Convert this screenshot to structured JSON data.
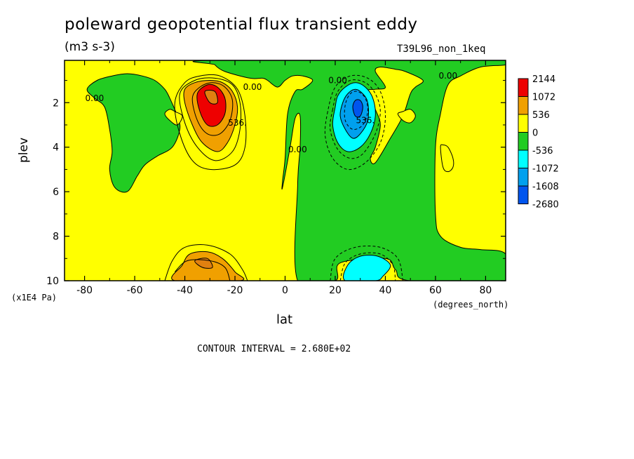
{
  "title": "poleward geopotential flux transient eddy",
  "units": "(m3 s-3)",
  "subtitle": "T39L96_non_1keq",
  "xlabel": "lat",
  "xunit": "(degrees_north)",
  "ylabel": "plev",
  "yunit": "(x1E4 Pa)",
  "contour_interval": "CONTOUR INTERVAL = 2.680E+02",
  "colors": {
    "red": "#ee0000",
    "orange": "#f0a000",
    "yellow": "#ffff00",
    "green": "#22cc22",
    "cyan": "#00ffff",
    "lightblue": "#00a0ee",
    "blue": "#0055ee",
    "darkorange": "#e08010"
  },
  "chart_data": {
    "type": "heatmap",
    "title": "poleward geopotential flux transient eddy",
    "subtitle": "T39L96_non_1keq",
    "xlabel": "lat",
    "ylabel": "plev",
    "xlim": [
      -88,
      88
    ],
    "ylim": [
      10,
      0.1
    ],
    "x_ticks": [
      -80,
      -60,
      -40,
      -20,
      0,
      20,
      40,
      60,
      80
    ],
    "y_ticks": [
      2,
      4,
      6,
      8,
      10
    ],
    "legend": {
      "placement": "right",
      "levels": [
        {
          "label": "2144",
          "color": "#ee0000"
        },
        {
          "label": "1072",
          "color": "#f0a000"
        },
        {
          "label": "536",
          "color": "#ffff00"
        },
        {
          "label": "0",
          "color": "#22cc22"
        },
        {
          "label": "-536",
          "color": "#00ffff"
        },
        {
          "label": "-1072",
          "color": "#00a0ee"
        },
        {
          "label": "-1608",
          "color": "#0055ee"
        },
        {
          "label": "-2680",
          "color": ""
        }
      ]
    },
    "contour_labels": [
      {
        "text": "0.00",
        "x": -76,
        "y": 1.8
      },
      {
        "text": "0.00",
        "x": -13,
        "y": 1.3
      },
      {
        "text": "536.",
        "x": -19,
        "y": 2.9
      },
      {
        "text": "0.00",
        "x": 5,
        "y": 4.1
      },
      {
        "text": "0.00",
        "x": 21,
        "y": 1.0
      },
      {
        "text": "536.",
        "x": 32,
        "y": 2.8
      },
      {
        "text": "0.00",
        "x": 65,
        "y": 0.8
      }
    ],
    "regions": [
      {
        "fill": "green",
        "points": [
          [
            -28,
            0.1
          ],
          [
            -28,
            0.3
          ],
          [
            -24,
            0.6
          ],
          [
            -14,
            0.9
          ],
          [
            -9,
            0.9
          ],
          [
            -7,
            1.0
          ],
          [
            -3,
            1.3
          ],
          [
            0,
            1.0
          ],
          [
            3,
            0.8
          ],
          [
            7,
            0.8
          ],
          [
            11,
            1.0
          ],
          [
            7,
            1.4
          ],
          [
            4,
            1.5
          ],
          [
            1,
            2.5
          ],
          [
            0,
            4.5
          ],
          [
            -1,
            5.5
          ],
          [
            -1,
            5.8
          ],
          [
            2,
            4.0
          ],
          [
            4,
            2.7
          ],
          [
            6,
            2.6
          ],
          [
            6,
            4.0
          ],
          [
            5,
            5.7
          ],
          [
            5,
            10
          ],
          [
            20,
            10
          ],
          [
            22,
            9.2
          ],
          [
            40,
            9.0
          ],
          [
            44,
            9.5
          ],
          [
            50,
            10
          ],
          [
            88,
            10
          ],
          [
            88,
            8.8
          ],
          [
            78,
            8.6
          ],
          [
            70,
            8.5
          ],
          [
            62,
            8.0
          ],
          [
            60,
            7.0
          ],
          [
            60,
            4.0
          ],
          [
            62,
            2.5
          ],
          [
            65,
            1.2
          ],
          [
            70,
            0.8
          ],
          [
            78,
            0.4
          ],
          [
            88,
            0.3
          ],
          [
            88,
            0.1
          ]
        ]
      },
      {
        "fill": "yellow",
        "points": [
          [
            33,
            1.5
          ],
          [
            36,
            2.3
          ],
          [
            38,
            3.0
          ],
          [
            36,
            4.0
          ],
          [
            34,
            4.5
          ],
          [
            36,
            4.7
          ],
          [
            42,
            3.6
          ],
          [
            47,
            2.6
          ],
          [
            50,
            1.6
          ],
          [
            52,
            1.3
          ],
          [
            55,
            1.0
          ],
          [
            48,
            0.6
          ],
          [
            44,
            0.5
          ],
          [
            38,
            0.4
          ],
          [
            36,
            0.6
          ],
          [
            40,
            1.3
          ],
          [
            36,
            1.4
          ]
        ]
      },
      {
        "fill": "yellow",
        "points": [
          [
            62,
            4.0
          ],
          [
            63,
            4.9
          ],
          [
            65,
            5.1
          ],
          [
            67,
            4.9
          ],
          [
            67,
            4.5
          ],
          [
            65,
            4.0
          ],
          [
            63,
            3.9
          ]
        ]
      },
      {
        "fill": "yellow",
        "points": [
          [
            45,
            2.5
          ],
          [
            47,
            2.8
          ],
          [
            50,
            2.9
          ],
          [
            52,
            2.6
          ],
          [
            50,
            2.3
          ],
          [
            47,
            2.4
          ]
        ]
      },
      {
        "fill": "green",
        "points": [
          [
            -75,
            1.0
          ],
          [
            -79,
            1.4
          ],
          [
            -76,
            1.8
          ],
          [
            -72,
            2.2
          ],
          [
            -70,
            3.2
          ],
          [
            -69,
            4.2
          ],
          [
            -70,
            5.0
          ],
          [
            -68,
            5.8
          ],
          [
            -63,
            6.0
          ],
          [
            -59,
            5.3
          ],
          [
            -56,
            4.8
          ],
          [
            -51,
            4.4
          ],
          [
            -45,
            4.0
          ],
          [
            -42,
            3.2
          ],
          [
            -43,
            2.6
          ],
          [
            -46,
            1.8
          ],
          [
            -48,
            1.4
          ],
          [
            -52,
            1.0
          ],
          [
            -57,
            0.8
          ],
          [
            -63,
            0.7
          ],
          [
            -69,
            0.8
          ]
        ]
      },
      {
        "fill": "yellow",
        "points": [
          [
            -48,
            2.5
          ],
          [
            -46,
            2.8
          ],
          [
            -43,
            3.0
          ],
          [
            -41,
            2.6
          ],
          [
            -44,
            2.4
          ],
          [
            -46,
            2.3
          ]
        ]
      },
      {
        "fill": "cyan",
        "points": [
          [
            20,
            2.2
          ],
          [
            19,
            3.0
          ],
          [
            21,
            3.8
          ],
          [
            25,
            4.2
          ],
          [
            30,
            4.0
          ],
          [
            34,
            3.4
          ],
          [
            36,
            2.6
          ],
          [
            35,
            1.8
          ],
          [
            32,
            1.3
          ],
          [
            28,
            1.1
          ],
          [
            24,
            1.3
          ],
          [
            21,
            1.7
          ]
        ]
      },
      {
        "fill": "lightblue",
        "points": [
          [
            23,
            2.0
          ],
          [
            22,
            2.6
          ],
          [
            24,
            3.2
          ],
          [
            27,
            3.6
          ],
          [
            30,
            3.4
          ],
          [
            33,
            2.8
          ],
          [
            33,
            2.0
          ],
          [
            31,
            1.6
          ],
          [
            28,
            1.4
          ],
          [
            25,
            1.6
          ]
        ]
      },
      {
        "fill": "blue",
        "points": [
          [
            27,
            2.2
          ],
          [
            28,
            2.6
          ],
          [
            30,
            2.6
          ],
          [
            31,
            2.2
          ],
          [
            30,
            1.9
          ],
          [
            28,
            1.9
          ]
        ]
      },
      {
        "fill": "cyan",
        "points": [
          [
            24,
            10
          ],
          [
            25,
            9.3
          ],
          [
            30,
            8.9
          ],
          [
            37,
            8.9
          ],
          [
            42,
            9.3
          ],
          [
            39,
            9.8
          ],
          [
            36,
            10
          ]
        ]
      },
      {
        "fill": "orange",
        "points": [
          [
            -40,
            1.4
          ],
          [
            -40,
            2.0
          ],
          [
            -37,
            3.0
          ],
          [
            -33,
            3.8
          ],
          [
            -27,
            4.2
          ],
          [
            -23,
            3.8
          ],
          [
            -20,
            3.0
          ],
          [
            -19,
            2.2
          ],
          [
            -21,
            1.5
          ],
          [
            -25,
            1.1
          ],
          [
            -30,
            1.0
          ],
          [
            -36,
            1.1
          ]
        ]
      },
      {
        "fill": "red",
        "points": [
          [
            -35,
            1.6
          ],
          [
            -34,
            2.4
          ],
          [
            -31,
            3.0
          ],
          [
            -27,
            3.0
          ],
          [
            -24,
            2.5
          ],
          [
            -24,
            1.8
          ],
          [
            -27,
            1.3
          ],
          [
            -31,
            1.2
          ]
        ]
      },
      {
        "fill": "darkorange",
        "points": [
          [
            -32,
            1.5
          ],
          [
            -30,
            2.0
          ],
          [
            -27,
            2.0
          ],
          [
            -28,
            1.5
          ]
        ]
      },
      {
        "fill": "orange",
        "points": [
          [
            -44,
            10
          ],
          [
            -41,
            9.3
          ],
          [
            -38,
            8.8
          ],
          [
            -31,
            8.7
          ],
          [
            -25,
            9.0
          ],
          [
            -20,
            9.6
          ],
          [
            -18,
            10
          ]
        ]
      },
      {
        "fill": "darkorange",
        "points": [
          [
            -36,
            9.1
          ],
          [
            -33,
            9.4
          ],
          [
            -29,
            9.4
          ],
          [
            -31,
            9.0
          ]
        ]
      }
    ],
    "contour_lines": [
      {
        "style": "solid",
        "points": [
          [
            -44,
            2.0
          ],
          [
            -42,
            3.4
          ],
          [
            -37,
            4.6
          ],
          [
            -30,
            5.0
          ],
          [
            -20,
            4.8
          ],
          [
            -16,
            4.0
          ],
          [
            -16,
            2.6
          ],
          [
            -19,
            1.4
          ],
          [
            -26,
            0.8
          ],
          [
            -34,
            0.8
          ],
          [
            -40,
            1.1
          ]
        ]
      },
      {
        "style": "solid",
        "points": [
          [
            -42,
            1.6
          ],
          [
            -40,
            2.9
          ],
          [
            -35,
            4.0
          ],
          [
            -28,
            4.6
          ],
          [
            -21,
            4.2
          ],
          [
            -18,
            3.2
          ],
          [
            -18,
            2.0
          ],
          [
            -21,
            1.2
          ],
          [
            -28,
            0.9
          ],
          [
            -36,
            1.0
          ]
        ]
      },
      {
        "style": "solid",
        "points": [
          [
            -37,
            1.8
          ],
          [
            -35,
            2.8
          ],
          [
            -31,
            3.4
          ],
          [
            -26,
            3.4
          ],
          [
            -22,
            2.8
          ],
          [
            -21,
            1.9
          ],
          [
            -24,
            1.3
          ],
          [
            -29,
            1.1
          ],
          [
            -34,
            1.3
          ]
        ]
      },
      {
        "style": "solid",
        "points": [
          [
            -48,
            10
          ],
          [
            -45,
            9.1
          ],
          [
            -40,
            8.5
          ],
          [
            -31,
            8.4
          ],
          [
            -22,
            8.8
          ],
          [
            -17,
            9.5
          ],
          [
            -15,
            10
          ]
        ]
      },
      {
        "style": "solid",
        "points": [
          [
            -44,
            9.6
          ],
          [
            -39,
            9.1
          ],
          [
            -30,
            9.1
          ],
          [
            -24,
            9.4
          ],
          [
            -22,
            10
          ]
        ]
      },
      {
        "style": "dashed",
        "points": [
          [
            17,
            2.4
          ],
          [
            16,
            3.5
          ],
          [
            19,
            4.5
          ],
          [
            25,
            5.0
          ],
          [
            32,
            4.7
          ],
          [
            38,
            3.8
          ],
          [
            40,
            2.6
          ],
          [
            38,
            1.5
          ],
          [
            33,
            0.9
          ],
          [
            26,
            0.8
          ],
          [
            20,
            1.3
          ]
        ]
      },
      {
        "style": "dashed",
        "points": [
          [
            19,
            2.3
          ],
          [
            18,
            3.2
          ],
          [
            21,
            4.1
          ],
          [
            26,
            4.5
          ],
          [
            31,
            4.3
          ],
          [
            36,
            3.4
          ],
          [
            38,
            2.4
          ],
          [
            36,
            1.6
          ],
          [
            32,
            1.1
          ],
          [
            26,
            1.0
          ],
          [
            21,
            1.5
          ]
        ]
      },
      {
        "style": "dashed",
        "points": [
          [
            24,
            2.1
          ],
          [
            24,
            2.8
          ],
          [
            27,
            3.2
          ],
          [
            31,
            3.0
          ],
          [
            33,
            2.4
          ],
          [
            32,
            1.8
          ],
          [
            29,
            1.5
          ],
          [
            26,
            1.6
          ]
        ]
      },
      {
        "style": "dashed",
        "points": [
          [
            18,
            10
          ],
          [
            20,
            9.0
          ],
          [
            28,
            8.5
          ],
          [
            38,
            8.5
          ],
          [
            45,
            9.0
          ],
          [
            47,
            10
          ]
        ]
      },
      {
        "style": "dashed",
        "points": [
          [
            22,
            10
          ],
          [
            24,
            9.2
          ],
          [
            30,
            8.8
          ],
          [
            38,
            8.8
          ],
          [
            43,
            9.3
          ],
          [
            44,
            10
          ]
        ]
      }
    ]
  }
}
